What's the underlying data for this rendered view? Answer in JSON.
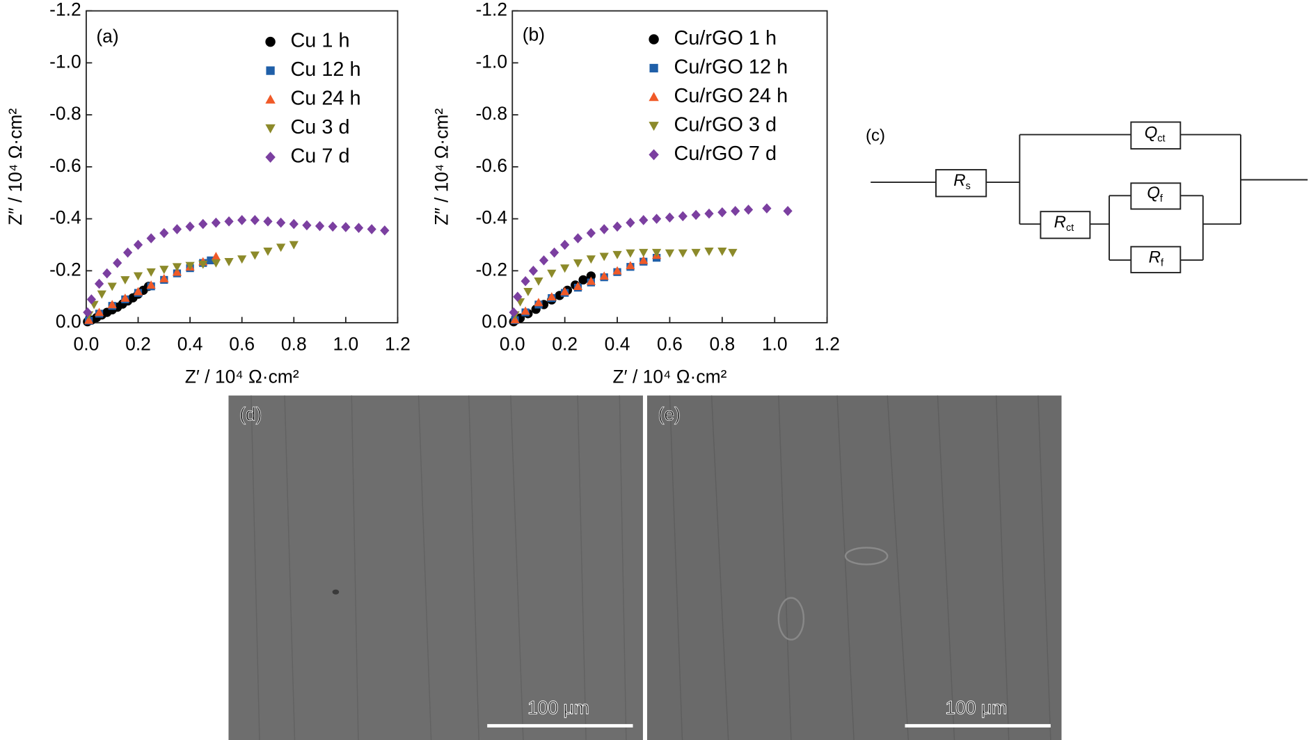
{
  "chart_data": [
    {
      "type": "scatter",
      "panel_label": "(a)",
      "x_label": "Z′ / 10⁴ Ω·cm²",
      "y_label": "Z″ / 10⁴ Ω·cm²",
      "xlim": [
        0,
        1.2
      ],
      "ylim": [
        0,
        -1.2
      ],
      "xticks": [
        {
          "value": 0,
          "label": "0.0"
        },
        0.2,
        0.4,
        0.6,
        0.8,
        {
          "value": 1,
          "label": "1.0"
        },
        1.2
      ],
      "yticks": [
        {
          "value": 0,
          "label": "0.0"
        },
        -0.2,
        -0.4,
        -0.6,
        -0.8,
        {
          "value": -1,
          "label": "-1.0"
        },
        -1.2
      ],
      "legend": "upper right",
      "series": [
        {
          "name": "Cu 1 h",
          "color": "#000000",
          "marker": "circle",
          "x": [
            0.005,
            0.02,
            0.04,
            0.06,
            0.08,
            0.1,
            0.12,
            0.14,
            0.16,
            0.18,
            0.2,
            0.22,
            0.24
          ],
          "values": [
            -0.004,
            -0.01,
            -0.02,
            -0.03,
            -0.04,
            -0.05,
            -0.06,
            -0.072,
            -0.084,
            -0.096,
            -0.11,
            -0.125,
            -0.14
          ]
        },
        {
          "name": "Cu 12 h",
          "color": "#1f5fa8",
          "marker": "square",
          "x": [
            0.01,
            0.05,
            0.1,
            0.15,
            0.2,
            0.25,
            0.3,
            0.35,
            0.4,
            0.45,
            0.48
          ],
          "values": [
            -0.008,
            -0.035,
            -0.065,
            -0.09,
            -0.115,
            -0.14,
            -0.165,
            -0.19,
            -0.21,
            -0.23,
            -0.24
          ]
        },
        {
          "name": "Cu 24 h",
          "color": "#f05a28",
          "marker": "triangle-up",
          "x": [
            0.01,
            0.05,
            0.1,
            0.15,
            0.2,
            0.25,
            0.3,
            0.35,
            0.4,
            0.45,
            0.5
          ],
          "values": [
            -0.01,
            -0.04,
            -0.07,
            -0.095,
            -0.12,
            -0.145,
            -0.17,
            -0.195,
            -0.215,
            -0.235,
            -0.255
          ]
        },
        {
          "name": "Cu 3 d",
          "color": "#8c8a2a",
          "marker": "triangle-down",
          "x": [
            0.01,
            0.03,
            0.06,
            0.1,
            0.15,
            0.2,
            0.25,
            0.3,
            0.35,
            0.4,
            0.45,
            0.5,
            0.55,
            0.6,
            0.65,
            0.7,
            0.75,
            0.8
          ],
          "values": [
            -0.03,
            -0.07,
            -0.11,
            -0.14,
            -0.165,
            -0.18,
            -0.195,
            -0.205,
            -0.215,
            -0.22,
            -0.225,
            -0.23,
            -0.235,
            -0.245,
            -0.26,
            -0.275,
            -0.29,
            -0.3
          ]
        },
        {
          "name": "Cu 7 d",
          "color": "#7b3fa0",
          "marker": "diamond",
          "x": [
            0.005,
            0.02,
            0.05,
            0.08,
            0.12,
            0.16,
            0.2,
            0.25,
            0.3,
            0.35,
            0.4,
            0.45,
            0.5,
            0.55,
            0.6,
            0.65,
            0.7,
            0.75,
            0.8,
            0.85,
            0.9,
            0.95,
            1.0,
            1.05,
            1.1,
            1.15
          ],
          "values": [
            -0.04,
            -0.09,
            -0.15,
            -0.19,
            -0.23,
            -0.27,
            -0.3,
            -0.325,
            -0.345,
            -0.36,
            -0.37,
            -0.38,
            -0.385,
            -0.39,
            -0.395,
            -0.395,
            -0.39,
            -0.385,
            -0.38,
            -0.375,
            -0.372,
            -0.37,
            -0.368,
            -0.365,
            -0.36,
            -0.355
          ]
        }
      ]
    },
    {
      "type": "scatter",
      "panel_label": "(b)",
      "x_label": "Z′ / 10⁴ Ω·cm²",
      "y_label": "Z″ / 10⁴ Ω·cm²",
      "xlim": [
        0,
        1.2
      ],
      "ylim": [
        0,
        -1.2
      ],
      "xticks": [
        {
          "value": 0,
          "label": "0.0"
        },
        0.2,
        0.4,
        0.6,
        0.8,
        {
          "value": 1,
          "label": "1.0"
        },
        1.2
      ],
      "yticks": [
        {
          "value": 0,
          "label": "0.0"
        },
        -0.2,
        -0.4,
        -0.6,
        -0.8,
        {
          "value": -1,
          "label": "-1.0"
        },
        -1.2
      ],
      "legend": "upper right",
      "series": [
        {
          "name": "Cu/rGO 1 h",
          "color": "#000000",
          "marker": "circle",
          "x": [
            0.005,
            0.03,
            0.06,
            0.09,
            0.12,
            0.15,
            0.18,
            0.21,
            0.24,
            0.27,
            0.3
          ],
          "values": [
            -0.004,
            -0.018,
            -0.035,
            -0.052,
            -0.07,
            -0.088,
            -0.105,
            -0.125,
            -0.145,
            -0.165,
            -0.18
          ]
        },
        {
          "name": "Cu/rGO 12 h",
          "color": "#1f5fa8",
          "marker": "square",
          "x": [
            0.01,
            0.05,
            0.1,
            0.15,
            0.2,
            0.25,
            0.3,
            0.35,
            0.4,
            0.45,
            0.5,
            0.55
          ],
          "values": [
            -0.01,
            -0.04,
            -0.07,
            -0.095,
            -0.115,
            -0.135,
            -0.155,
            -0.175,
            -0.195,
            -0.215,
            -0.235,
            -0.25
          ]
        },
        {
          "name": "Cu/rGO 24 h",
          "color": "#f05a28",
          "marker": "triangle-up",
          "x": [
            0.01,
            0.05,
            0.1,
            0.15,
            0.2,
            0.25,
            0.3,
            0.35,
            0.4,
            0.45,
            0.5,
            0.55
          ],
          "values": [
            -0.012,
            -0.045,
            -0.078,
            -0.1,
            -0.12,
            -0.14,
            -0.16,
            -0.18,
            -0.2,
            -0.22,
            -0.24,
            -0.26
          ]
        },
        {
          "name": "Cu/rGO 3 d",
          "color": "#8c8a2a",
          "marker": "triangle-down",
          "x": [
            0.01,
            0.03,
            0.06,
            0.1,
            0.15,
            0.2,
            0.25,
            0.3,
            0.35,
            0.4,
            0.45,
            0.5,
            0.55,
            0.6,
            0.65,
            0.7,
            0.75,
            0.8,
            0.84
          ],
          "values": [
            -0.03,
            -0.08,
            -0.12,
            -0.16,
            -0.19,
            -0.21,
            -0.23,
            -0.245,
            -0.255,
            -0.262,
            -0.268,
            -0.27,
            -0.27,
            -0.268,
            -0.268,
            -0.27,
            -0.275,
            -0.275,
            -0.27
          ]
        },
        {
          "name": "Cu/rGO 7 d",
          "color": "#7b3fa0",
          "marker": "diamond",
          "x": [
            0.005,
            0.02,
            0.05,
            0.08,
            0.12,
            0.16,
            0.2,
            0.25,
            0.3,
            0.35,
            0.4,
            0.45,
            0.5,
            0.55,
            0.6,
            0.65,
            0.7,
            0.75,
            0.8,
            0.85,
            0.9,
            0.97,
            1.05
          ],
          "values": [
            -0.04,
            -0.1,
            -0.16,
            -0.2,
            -0.24,
            -0.27,
            -0.3,
            -0.325,
            -0.345,
            -0.36,
            -0.37,
            -0.385,
            -0.395,
            -0.4,
            -0.405,
            -0.41,
            -0.415,
            -0.42,
            -0.425,
            -0.43,
            -0.435,
            -0.44,
            -0.43
          ]
        }
      ]
    }
  ],
  "circuit": {
    "panel_label": "(c)",
    "elements": [
      {
        "symbol": "R",
        "subscript": "s"
      },
      {
        "symbol": "Q",
        "subscript": "ct"
      },
      {
        "symbol": "R",
        "subscript": "ct"
      },
      {
        "symbol": "Q",
        "subscript": "f"
      },
      {
        "symbol": "R",
        "subscript": "f"
      }
    ]
  },
  "images": [
    {
      "panel_label": "(d)",
      "scale_bar": "100 μm"
    },
    {
      "panel_label": "(e)",
      "scale_bar": "100 μm"
    }
  ]
}
